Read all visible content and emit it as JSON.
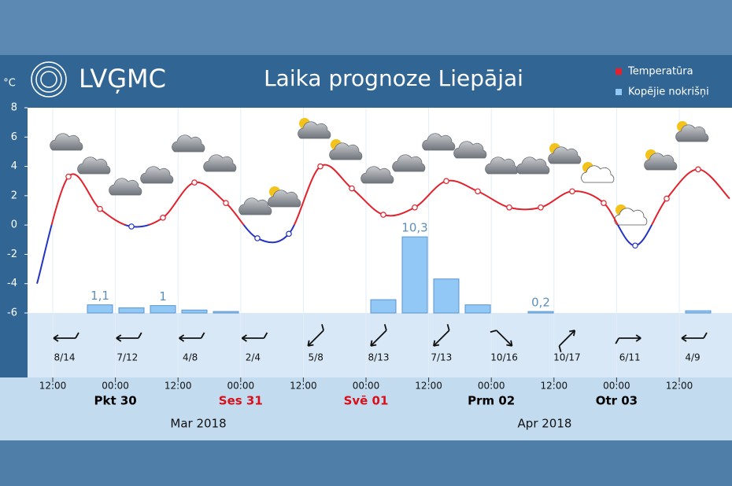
{
  "header": {
    "logo": "LVĢMC",
    "title": "Laika prognoze Liepājai"
  },
  "chart_data": {
    "type": "line",
    "y_label": "°C",
    "ylim": [
      -6,
      8
    ],
    "yticks": [
      -6,
      -4,
      -2,
      0,
      2,
      4,
      6,
      8
    ],
    "negative_color": "#2433c4",
    "series": [
      {
        "name": "Temperatūra",
        "color": "#e3202b",
        "values": [
          -4.0,
          3.3,
          1.1,
          -0.1,
          0.5,
          2.9,
          1.5,
          -0.9,
          -0.6,
          4.0,
          2.5,
          0.7,
          1.2,
          3.0,
          2.3,
          1.2,
          1.2,
          2.3,
          1.5,
          -1.4,
          1.8,
          3.8,
          1.8
        ]
      },
      {
        "name": "Kopējie nokrišņi",
        "type": "bar",
        "color": "#92c8f5",
        "values": [
          null,
          null,
          1.1,
          0.7,
          1.0,
          0.4,
          0.2,
          null,
          null,
          null,
          null,
          1.8,
          10.3,
          4.6,
          1.1,
          null,
          0.2,
          null,
          null,
          null,
          null,
          0.3,
          null
        ],
        "value_labels": [
          null,
          null,
          "1,1",
          null,
          "1",
          null,
          null,
          null,
          null,
          null,
          null,
          null,
          "10,3",
          null,
          null,
          null,
          "0,2",
          null,
          null,
          null,
          null,
          null,
          null
        ]
      }
    ],
    "x_ticks": [
      "12:00",
      "00:00",
      "12:00",
      "00:00",
      "12:00",
      "00:00",
      "12:00",
      "00:00",
      "12:00",
      "00:00",
      "12:00"
    ],
    "days": [
      {
        "label": "Pkt 30",
        "color": "#000000"
      },
      {
        "label": "Ses 31",
        "color": "#d8101a"
      },
      {
        "label": "Svē 01",
        "color": "#d8101a"
      },
      {
        "label": "Prm 02",
        "color": "#000000"
      },
      {
        "label": "Otr 03",
        "color": "#000000"
      }
    ],
    "months": [
      "Mar 2018",
      "Apr 2018"
    ],
    "wind": [
      "8/14",
      "7/12",
      "4/8",
      "2/4",
      "5/8",
      "8/13",
      "7/13",
      "10/16",
      "10/17",
      "6/11",
      "4/9"
    ]
  }
}
